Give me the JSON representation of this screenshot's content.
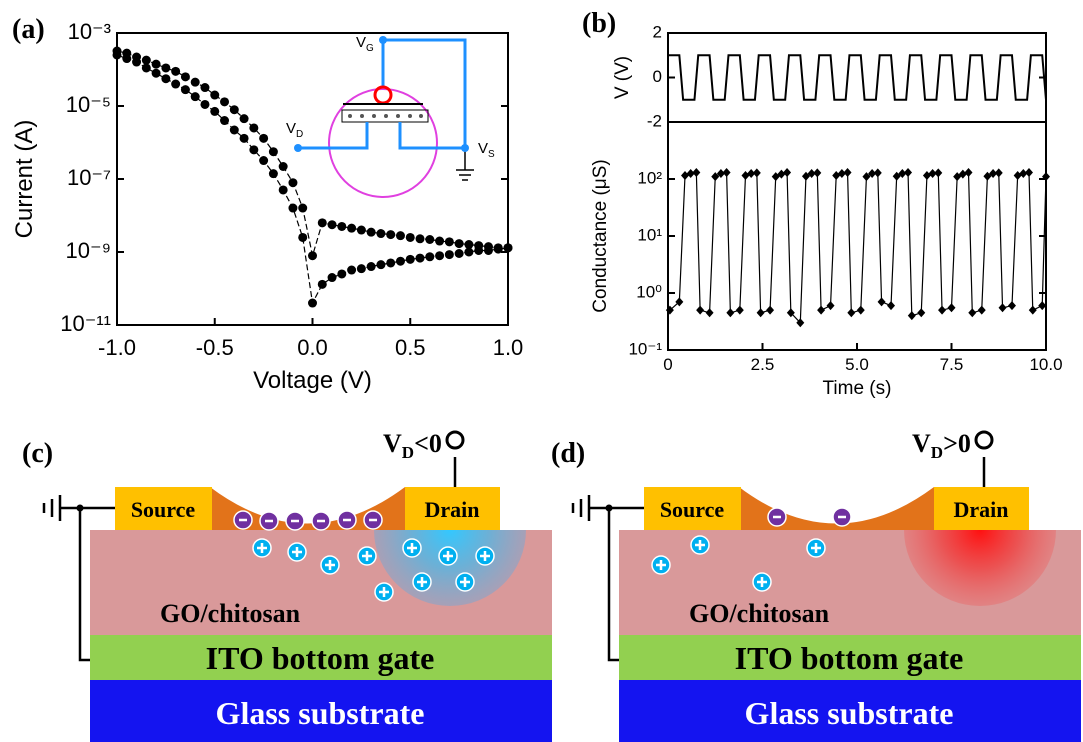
{
  "chart_data": [
    {
      "type": "line",
      "panel_label": "(a)",
      "xlabel": "Voltage (V)",
      "ylabel": "Current (A)",
      "log_y": true,
      "xlim": [
        -1,
        1
      ],
      "ylim": [
        1e-11,
        0.001
      ],
      "xticks": [
        {
          "value": -1,
          "label": "-1.0"
        },
        -0.5,
        {
          "value": 0,
          "label": "0.0"
        },
        0.5,
        {
          "value": 1,
          "label": "1.0"
        }
      ],
      "yticks": [
        {
          "value": 1e-11,
          "label": "10⁻¹¹"
        },
        {
          "value": 1e-09,
          "label": "10⁻⁹"
        },
        {
          "value": 1e-07,
          "label": "10⁻⁷"
        },
        {
          "value": 1e-05,
          "label": "10⁻⁵"
        },
        {
          "value": 0.001,
          "label": "10⁻³"
        }
      ],
      "x": [
        -1,
        -0.95,
        -0.9,
        -0.85,
        -0.8,
        -0.75,
        -0.7,
        -0.65,
        -0.6,
        -0.55,
        -0.5,
        -0.45,
        -0.4,
        -0.35,
        -0.3,
        -0.25,
        -0.2,
        -0.15,
        -0.1,
        -0.05,
        0,
        0.05,
        0.1,
        0.15,
        0.2,
        0.25,
        0.3,
        0.35,
        0.4,
        0.45,
        0.5,
        0.55,
        0.6,
        0.65,
        0.7,
        0.75,
        0.8,
        0.85,
        0.9,
        0.95,
        1
      ],
      "series": [
        {
          "color": "#000000",
          "marker": "circle",
          "line_style": "dashed",
          "values": [
            0.00032,
            0.00028,
            0.00022,
            0.00018,
            0.00014,
            0.00011,
            8.9e-05,
            6.3e-05,
            4.5e-05,
            3.2e-05,
            2e-05,
            1.3e-05,
            7.9e-06,
            4.5e-06,
            2.5e-06,
            1.3e-06,
            5.6e-07,
            2.2e-07,
            7.9e-08,
            1.6e-08,
            7.9e-10,
            6.3e-09,
            5.6e-09,
            5e-09,
            4.5e-09,
            4e-09,
            3.5e-09,
            3.2e-09,
            3e-09,
            2.8e-09,
            2.5e-09,
            2.3e-09,
            2.2e-09,
            2e-09,
            1.9e-09,
            1.7e-09,
            1.6e-09,
            1.5e-09,
            1.4e-09,
            1.3e-09,
            1.3e-09
          ]
        },
        {
          "color": "#000000",
          "marker": "circle",
          "line_style": "dashed",
          "values": [
            0.00025,
            0.0002,
            0.00016,
            0.00011,
            7.9e-05,
            5.6e-05,
            4e-05,
            2.8e-05,
            1.8e-05,
            1.1e-05,
            7.1e-06,
            4e-06,
            2.2e-06,
            1.3e-06,
            6.3e-07,
            3.2e-07,
            1.4e-07,
            5e-08,
            1.6e-08,
            2.5e-09,
            4e-11,
            1.3e-10,
            2e-10,
            2.5e-10,
            3.2e-10,
            3.5e-10,
            4e-10,
            4.5e-10,
            5e-10,
            5.6e-10,
            6.3e-10,
            6.8e-10,
            7.4e-10,
            7.9e-10,
            8.5e-10,
            9.1e-10,
            1e-09,
            1.1e-09,
            1.1e-09,
            1.2e-09,
            1.3e-09
          ]
        }
      ],
      "annotations": [
        {
          "text": "V",
          "sub": "G"
        },
        {
          "text": "V",
          "sub": "D"
        },
        {
          "text": "V",
          "sub": "S"
        }
      ]
    },
    {
      "type": "line",
      "panel_label": "(b)",
      "ylabel": "V (V)",
      "xlim": [
        0,
        10
      ],
      "ylim": [
        -2,
        2
      ],
      "yticks": [
        -2,
        0,
        2
      ],
      "x": [
        0,
        0.3,
        0.4,
        0.7,
        0.8,
        1.1,
        1.2,
        1.5,
        1.6,
        1.9,
        2.0,
        2.3,
        2.4,
        2.7,
        2.8,
        3.1,
        3.2,
        3.5,
        3.6,
        3.9,
        4.0,
        4.3,
        4.4,
        4.7,
        4.8,
        5.1,
        5.2,
        5.5,
        5.6,
        5.9,
        6.0,
        6.3,
        6.4,
        6.7,
        6.8,
        7.1,
        7.2,
        7.5,
        7.6,
        7.9,
        8.0,
        8.3,
        8.4,
        8.7,
        8.8,
        9.1,
        9.2,
        9.5,
        9.6,
        9.9,
        10
      ],
      "series": [
        {
          "color": "#000000",
          "values": [
            1,
            1,
            -1,
            -1,
            1,
            1,
            -1,
            -1,
            1,
            1,
            -1,
            -1,
            1,
            1,
            -1,
            -1,
            1,
            1,
            -1,
            -1,
            1,
            1,
            -1,
            -1,
            1,
            1,
            -1,
            -1,
            1,
            1,
            -1,
            -1,
            1,
            1,
            -1,
            -1,
            1,
            1,
            -1,
            -1,
            1,
            1,
            -1,
            -1,
            1,
            1,
            -1,
            -1,
            1,
            1,
            -1
          ]
        }
      ]
    },
    {
      "type": "line",
      "xlabel": "Time (s)",
      "ylabel": "Conductance (μS)",
      "log_y": true,
      "xlim": [
        0,
        10
      ],
      "ylim": [
        0.1,
        1000
      ],
      "xticks": [
        0,
        2.5,
        {
          "value": 5,
          "label": "5.0"
        },
        7.5,
        {
          "value": 10,
          "label": "10.0"
        }
      ],
      "yticks": [
        {
          "value": 0.1,
          "label": "10⁻¹"
        },
        {
          "value": 1,
          "label": "10⁰"
        },
        {
          "value": 10,
          "label": "10¹"
        },
        {
          "value": 100,
          "label": "10²"
        }
      ],
      "x": [
        0.05,
        0.3,
        0.45,
        0.6,
        0.75,
        0.85,
        1.1,
        1.25,
        1.4,
        1.55,
        1.65,
        1.9,
        2.05,
        2.2,
        2.35,
        2.45,
        2.7,
        2.85,
        3.0,
        3.15,
        3.25,
        3.5,
        3.65,
        3.8,
        3.95,
        4.05,
        4.3,
        4.45,
        4.6,
        4.75,
        4.85,
        5.1,
        5.25,
        5.4,
        5.55,
        5.65,
        5.9,
        6.05,
        6.2,
        6.35,
        6.45,
        6.7,
        6.85,
        7.0,
        7.15,
        7.25,
        7.5,
        7.65,
        7.8,
        7.95,
        8.05,
        8.3,
        8.45,
        8.6,
        8.75,
        8.85,
        9.1,
        9.25,
        9.4,
        9.55,
        9.65,
        9.9,
        10
      ],
      "series": [
        {
          "color": "#000000",
          "marker": "diamond",
          "values": [
            0.5,
            0.7,
            115,
            125,
            130,
            0.5,
            0.45,
            110,
            125,
            130,
            0.45,
            0.5,
            115,
            125,
            128,
            0.45,
            0.5,
            110,
            122,
            130,
            0.45,
            0.3,
            112,
            125,
            128,
            0.5,
            0.6,
            115,
            125,
            130,
            0.45,
            0.5,
            110,
            125,
            128,
            0.7,
            0.6,
            112,
            125,
            130,
            0.4,
            0.45,
            115,
            125,
            128,
            0.5,
            0.55,
            110,
            122,
            130,
            0.45,
            0.5,
            112,
            125,
            128,
            0.55,
            0.6,
            115,
            125,
            130,
            0.5,
            0.6,
            110
          ]
        }
      ]
    }
  ],
  "diagrams": [
    {
      "panel_label": "(c)",
      "terminal": {
        "text": "V",
        "sub": "D",
        "rest": "<0"
      },
      "source": "Source",
      "drain": "Drain",
      "layer": "GO/chitosan",
      "gate": "ITO bottom gate",
      "substrate": "Glass substrate"
    },
    {
      "panel_label": "(d)",
      "terminal": {
        "text": "V",
        "sub": "D",
        "rest": ">0"
      },
      "source": "Source",
      "drain": "Drain",
      "layer": "GO/chitosan",
      "gate": "ITO bottom gate",
      "substrate": "Glass substrate"
    }
  ]
}
